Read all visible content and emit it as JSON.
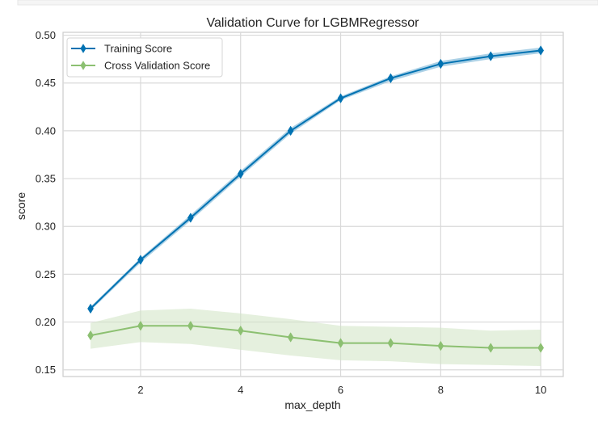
{
  "chart_data": {
    "type": "line",
    "title": "Validation Curve for LGBMRegressor",
    "xlabel": "max_depth",
    "ylabel": "score",
    "x": [
      1,
      2,
      3,
      4,
      5,
      6,
      7,
      8,
      9,
      10
    ],
    "xlim": [
      0.45,
      10.45
    ],
    "ylim": [
      0.143,
      0.503
    ],
    "xticks": [
      2,
      4,
      6,
      8,
      10
    ],
    "yticks": [
      0.15,
      0.2,
      0.25,
      0.3,
      0.35,
      0.4,
      0.45,
      0.5
    ],
    "ytick_labels": [
      "0.15",
      "0.20",
      "0.25",
      "0.30",
      "0.35",
      "0.40",
      "0.45",
      "0.50"
    ],
    "xtick_labels": [
      "2",
      "4",
      "6",
      "8",
      "10"
    ],
    "grid": true,
    "legend_position": "top-left",
    "series": [
      {
        "name": "Training Score",
        "color": "#0072B2",
        "band_color": "#7fb9d8",
        "marker": "diamond",
        "values": [
          0.214,
          0.265,
          0.309,
          0.355,
          0.4,
          0.434,
          0.455,
          0.47,
          0.478,
          0.484
        ],
        "upper": [
          0.216,
          0.267,
          0.312,
          0.358,
          0.403,
          0.436,
          0.457,
          0.473,
          0.481,
          0.487
        ],
        "lower": [
          0.212,
          0.262,
          0.306,
          0.352,
          0.397,
          0.432,
          0.452,
          0.467,
          0.475,
          0.481
        ]
      },
      {
        "name": "Cross Validation Score",
        "color": "#8cc071",
        "band_color": "#cfe3c2",
        "marker": "diamond",
        "values": [
          0.186,
          0.196,
          0.196,
          0.191,
          0.184,
          0.178,
          0.178,
          0.175,
          0.173,
          0.173
        ],
        "upper": [
          0.199,
          0.212,
          0.214,
          0.209,
          0.203,
          0.196,
          0.195,
          0.194,
          0.191,
          0.192
        ],
        "lower": [
          0.172,
          0.179,
          0.177,
          0.171,
          0.165,
          0.16,
          0.159,
          0.156,
          0.155,
          0.154
        ]
      }
    ]
  }
}
